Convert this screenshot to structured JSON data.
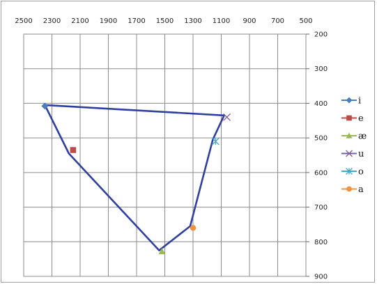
{
  "chart_data": {
    "type": "scatter",
    "x_axis": {
      "min": 500,
      "max": 2500,
      "reversed": true,
      "position": "top",
      "ticks": [
        "2500",
        "2300",
        "2100",
        "1900",
        "1700",
        "1500",
        "1300",
        "1100",
        "900",
        "700",
        "500"
      ],
      "tick_values": [
        2500,
        2300,
        2100,
        1900,
        1700,
        1500,
        1300,
        1100,
        900,
        700,
        500
      ]
    },
    "y_axis": {
      "min": 200,
      "max": 900,
      "reversed": true,
      "position": "right",
      "ticks": [
        "200",
        "300",
        "400",
        "500",
        "600",
        "700",
        "800",
        "900"
      ],
      "tick_values": [
        200,
        300,
        400,
        500,
        600,
        700,
        800,
        900
      ]
    },
    "grid": true,
    "legend_position": "right",
    "outline": {
      "color": "#2f3fa0",
      "points": [
        {
          "x": 2350,
          "y": 405
        },
        {
          "x": 2180,
          "y": 545
        },
        {
          "x": 1540,
          "y": 825
        },
        {
          "x": 1320,
          "y": 755
        },
        {
          "x": 1160,
          "y": 505
        },
        {
          "x": 1080,
          "y": 435
        },
        {
          "x": 2350,
          "y": 405
        }
      ]
    },
    "series": [
      {
        "name": "i",
        "x": 2350,
        "y": 408,
        "color": "#4a7ebb",
        "marker": "diamond"
      },
      {
        "name": "e",
        "x": 2150,
        "y": 535,
        "color": "#be4b48",
        "marker": "square"
      },
      {
        "name": "æ",
        "x": 1520,
        "y": 828,
        "color": "#98b954",
        "marker": "triangle"
      },
      {
        "name": "u",
        "x": 1060,
        "y": 440,
        "color": "#7d60a0",
        "marker": "x"
      },
      {
        "name": "o",
        "x": 1140,
        "y": 510,
        "color": "#46aac5",
        "marker": "star"
      },
      {
        "name": "a",
        "x": 1300,
        "y": 760,
        "color": "#f0913c",
        "marker": "circle"
      }
    ]
  }
}
